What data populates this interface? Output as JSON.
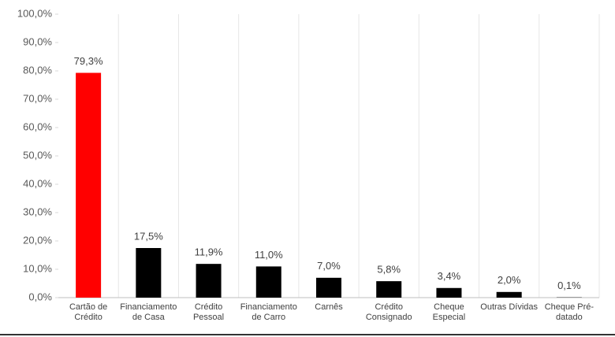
{
  "chart_data": {
    "type": "bar",
    "categories": [
      "Cartão de Crédito",
      "Financiamento de Casa",
      "Crédito Pessoal",
      "Financiamento de Carro",
      "Carnês",
      "Crédito Consignado",
      "Cheque Especial",
      "Outras Dívidas",
      "Cheque Pré-datado"
    ],
    "values": [
      79.3,
      17.5,
      11.9,
      11.0,
      7.0,
      5.8,
      3.4,
      2.0,
      0.1
    ],
    "value_labels": [
      "79,3%",
      "17,5%",
      "11,9%",
      "11,0%",
      "7,0%",
      "5,8%",
      "3,4%",
      "2,0%",
      "0,1%"
    ],
    "colors": [
      "#ff0000",
      "#000000",
      "#000000",
      "#000000",
      "#000000",
      "#000000",
      "#000000",
      "#000000",
      "#000000"
    ],
    "ylim": [
      0,
      100
    ],
    "yticks": [
      {
        "value": 0,
        "label": "0,0%"
      },
      {
        "value": 10,
        "label": "10,0%"
      },
      {
        "value": 20,
        "label": "20,0%"
      },
      {
        "value": 30,
        "label": "30,0%"
      },
      {
        "value": 40,
        "label": "40,0%"
      },
      {
        "value": 50,
        "label": "50,0%"
      },
      {
        "value": 60,
        "label": "60,0%"
      },
      {
        "value": 70,
        "label": "70,0%"
      },
      {
        "value": 80,
        "label": "80,0%"
      },
      {
        "value": 90,
        "label": "90,0%"
      },
      {
        "value": 100,
        "label": "100,0%"
      }
    ],
    "grid": true
  }
}
